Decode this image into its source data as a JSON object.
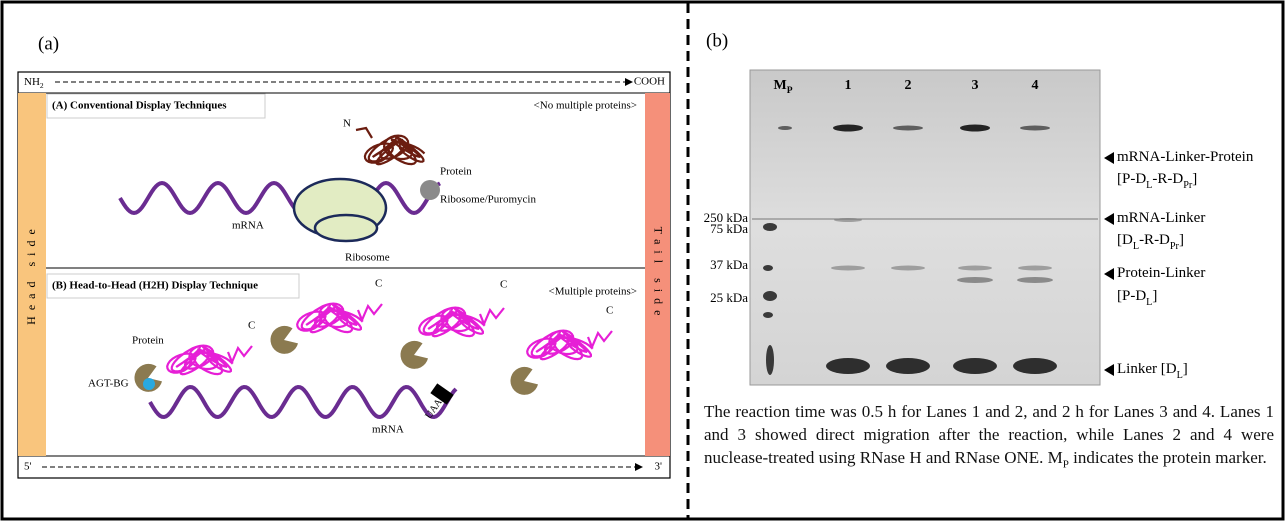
{
  "panel_a": {
    "label": "(a)",
    "n_terminus": [
      "NH",
      "2"
    ],
    "c_terminus": "COOH",
    "five_prime": "5'",
    "three_prime": "3'",
    "head_side": "Head side",
    "tail_side": "Tail side",
    "conventional": {
      "title": "(A) Conventional Display Techniques",
      "note": "<No multiple proteins>",
      "n_label": "N",
      "protein": "Protein",
      "puromycin": "Ribosome/Puromycin",
      "mrna": "mRNA",
      "ribosome": "Ribosome"
    },
    "h2h": {
      "title": "(B) Head-to-Head (H2H) Display Technique",
      "note": "<Multiple proteins>",
      "c_labels": [
        "C",
        "C",
        "C",
        "C"
      ],
      "protein": "Protein",
      "agt": "AGT-BG",
      "mrna": "mRNA",
      "stop_codon": "UAA"
    }
  },
  "panel_b": {
    "label": "(b)",
    "lanes": [
      [
        "M",
        "P"
      ],
      [
        "1"
      ],
      [
        "2"
      ],
      [
        "3"
      ],
      [
        "4"
      ]
    ],
    "markers": [
      "250 kDa",
      "75 kDa",
      "37 kDa",
      "25 kDa"
    ],
    "bands": [
      {
        "lines": [
          [
            "mRNA-Linker-Protein"
          ],
          [
            "[P-D",
            "L",
            "-R-D",
            "Pr",
            "]"
          ]
        ]
      },
      {
        "lines": [
          [
            "mRNA-Linker"
          ],
          [
            "[D",
            "L",
            "-R-D",
            "Pr",
            "]"
          ]
        ]
      },
      {
        "lines": [
          [
            "Protein-Linker"
          ],
          [
            "[P-D",
            "L",
            "]"
          ]
        ]
      },
      {
        "lines": [
          [
            "Linker [D",
            "L",
            "]"
          ]
        ]
      }
    ],
    "caption": [
      "The reaction time was 0.5 h for Lanes 1 and 2, and 2 h for Lanes 3 and 4. Lanes 1 and 3 showed direct migration after the reaction, while Lanes 2 and 4 were nuclease-treated using RNase H and RNase ONE. M",
      "P",
      " indicates the protein marker."
    ]
  }
}
